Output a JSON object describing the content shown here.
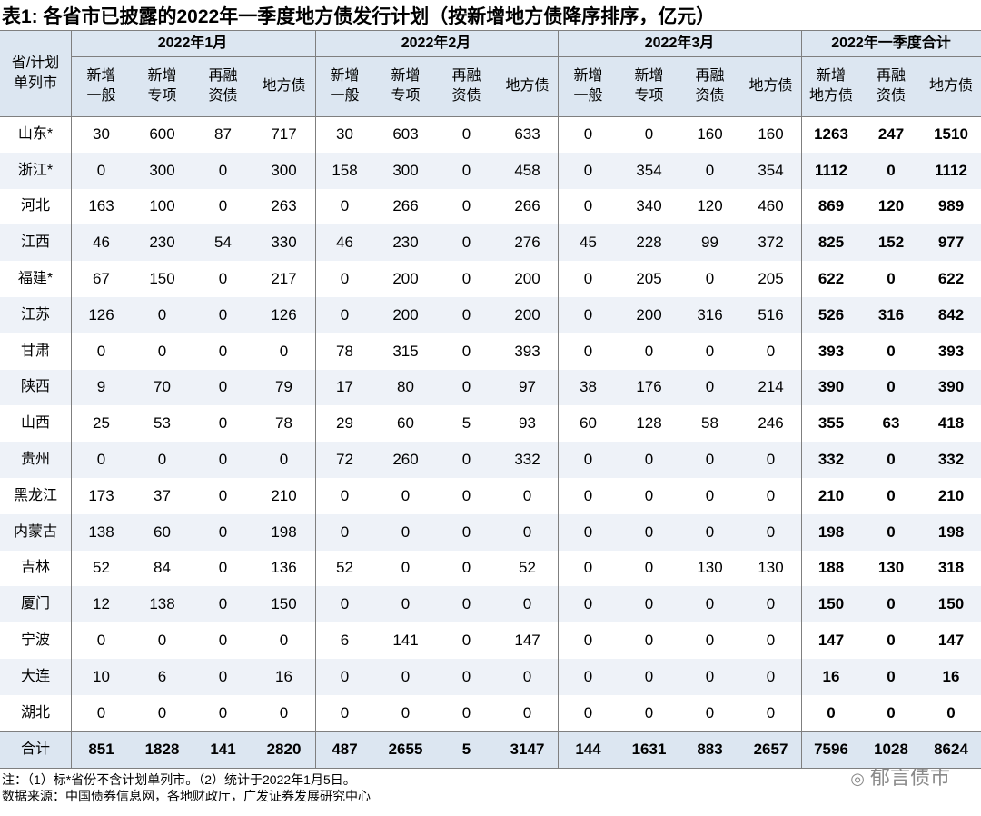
{
  "title": "表1: 各省市已披露的2022年一季度地方债发行计划（按新增地方债降序排序，亿元）",
  "table": {
    "corner": [
      "省/计划",
      "单列市"
    ],
    "groups": [
      "2022年1月",
      "2022年2月",
      "2022年3月",
      "2022年一季度合计"
    ],
    "subheaders": [
      [
        [
          "新增",
          "一般"
        ],
        [
          "新增",
          "专项"
        ],
        [
          "再融",
          "资债"
        ],
        [
          "地方债"
        ]
      ],
      [
        [
          "新增",
          "一般"
        ],
        [
          "新增",
          "专项"
        ],
        [
          "再融",
          "资债"
        ],
        [
          "地方债"
        ]
      ],
      [
        [
          "新增",
          "一般"
        ],
        [
          "新增",
          "专项"
        ],
        [
          "再融",
          "资债"
        ],
        [
          "地方债"
        ]
      ],
      [
        [
          "新增",
          "地方债"
        ],
        [
          "再融",
          "资债"
        ],
        [
          "地方债"
        ]
      ]
    ],
    "rows": [
      [
        "山东*",
        30,
        600,
        87,
        717,
        30,
        603,
        0,
        633,
        0,
        0,
        160,
        160,
        1263,
        247,
        1510
      ],
      [
        "浙江*",
        0,
        300,
        0,
        300,
        158,
        300,
        0,
        458,
        0,
        354,
        0,
        354,
        1112,
        0,
        1112
      ],
      [
        "河北",
        163,
        100,
        0,
        263,
        0,
        266,
        0,
        266,
        0,
        340,
        120,
        460,
        869,
        120,
        989
      ],
      [
        "江西",
        46,
        230,
        54,
        330,
        46,
        230,
        0,
        276,
        45,
        228,
        99,
        372,
        825,
        152,
        977
      ],
      [
        "福建*",
        67,
        150,
        0,
        217,
        0,
        200,
        0,
        200,
        0,
        205,
        0,
        205,
        622,
        0,
        622
      ],
      [
        "江苏",
        126,
        0,
        0,
        126,
        0,
        200,
        0,
        200,
        0,
        200,
        316,
        516,
        526,
        316,
        842
      ],
      [
        "甘肃",
        0,
        0,
        0,
        0,
        78,
        315,
        0,
        393,
        0,
        0,
        0,
        0,
        393,
        0,
        393
      ],
      [
        "陕西",
        9,
        70,
        0,
        79,
        17,
        80,
        0,
        97,
        38,
        176,
        0,
        214,
        390,
        0,
        390
      ],
      [
        "山西",
        25,
        53,
        0,
        78,
        29,
        60,
        5,
        93,
        60,
        128,
        58,
        246,
        355,
        63,
        418
      ],
      [
        "贵州",
        0,
        0,
        0,
        0,
        72,
        260,
        0,
        332,
        0,
        0,
        0,
        0,
        332,
        0,
        332
      ],
      [
        "黑龙江",
        173,
        37,
        0,
        210,
        0,
        0,
        0,
        0,
        0,
        0,
        0,
        0,
        210,
        0,
        210
      ],
      [
        "内蒙古",
        138,
        60,
        0,
        198,
        0,
        0,
        0,
        0,
        0,
        0,
        0,
        0,
        198,
        0,
        198
      ],
      [
        "吉林",
        52,
        84,
        0,
        136,
        52,
        0,
        0,
        52,
        0,
        0,
        130,
        130,
        188,
        130,
        318
      ],
      [
        "厦门",
        12,
        138,
        0,
        150,
        0,
        0,
        0,
        0,
        0,
        0,
        0,
        0,
        150,
        0,
        150
      ],
      [
        "宁波",
        0,
        0,
        0,
        0,
        6,
        141,
        0,
        147,
        0,
        0,
        0,
        0,
        147,
        0,
        147
      ],
      [
        "大连",
        10,
        6,
        0,
        16,
        0,
        0,
        0,
        0,
        0,
        0,
        0,
        0,
        16,
        0,
        16
      ],
      [
        "湖北",
        0,
        0,
        0,
        0,
        0,
        0,
        0,
        0,
        0,
        0,
        0,
        0,
        0,
        0,
        0
      ]
    ],
    "total": [
      "合计",
      851,
      1828,
      141,
      2820,
      487,
      2655,
      5,
      3147,
      144,
      1631,
      883,
      2657,
      7596,
      1028,
      8624
    ]
  },
  "notes": [
    "注：（1）标*省份不含计划单列市。（2）统计于2022年1月5日。",
    "数据来源：中国债券信息网，各地财政厅，广发证券发展研究中心"
  ],
  "watermark": "郁言债市"
}
